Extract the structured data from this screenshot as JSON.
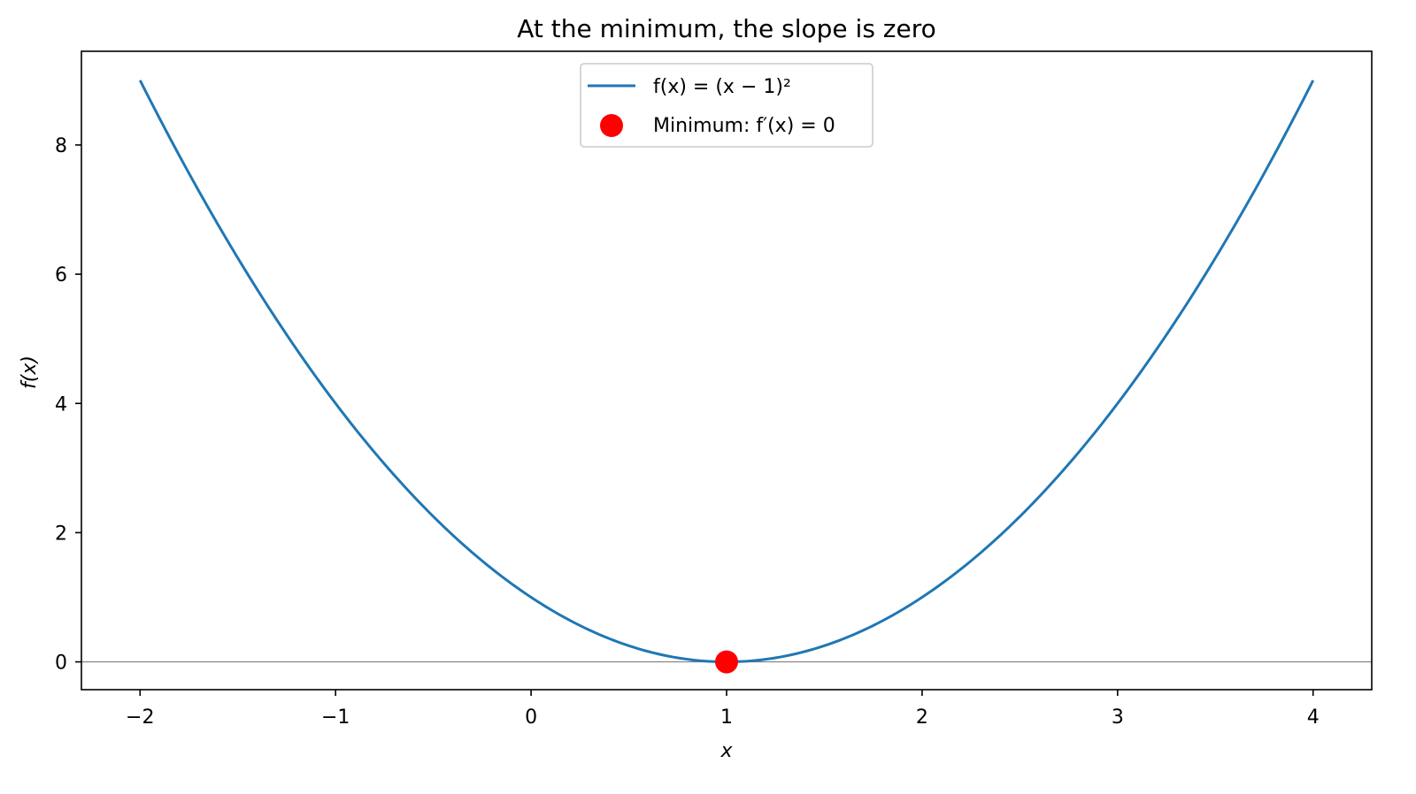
{
  "chart_data": {
    "type": "line",
    "title": "At the minimum, the slope is zero",
    "xlabel": "x",
    "ylabel": "f(x)",
    "xlim": [
      -2.3,
      4.3
    ],
    "ylim": [
      -0.43,
      9.45
    ],
    "xticks": [
      -2,
      -1,
      0,
      1,
      2,
      3,
      4
    ],
    "xtick_labels": [
      "−2",
      "−1",
      "0",
      "1",
      "2",
      "3",
      "4"
    ],
    "yticks": [
      0,
      2,
      4,
      6,
      8
    ],
    "ytick_labels": [
      "0",
      "2",
      "4",
      "6",
      "8"
    ],
    "grid": false,
    "legend_position": "top-center",
    "baseline": {
      "y": 0,
      "color": "#808080"
    },
    "series": [
      {
        "name": "f(x) = (x − 1)²",
        "kind": "line",
        "color": "#1f77b4",
        "function": "(x - 1)^2",
        "x": [
          -2,
          -1.5,
          -1,
          -0.5,
          0,
          0.5,
          1,
          1.5,
          2,
          2.5,
          3,
          3.5,
          4
        ],
        "y": [
          9,
          6.25,
          4,
          2.25,
          1,
          0.25,
          0,
          0.25,
          1,
          2.25,
          4,
          6.25,
          9
        ]
      },
      {
        "name": "Minimum: f′(x) = 0",
        "kind": "scatter",
        "color": "#ff0000",
        "x": [
          1
        ],
        "y": [
          0
        ]
      }
    ]
  }
}
